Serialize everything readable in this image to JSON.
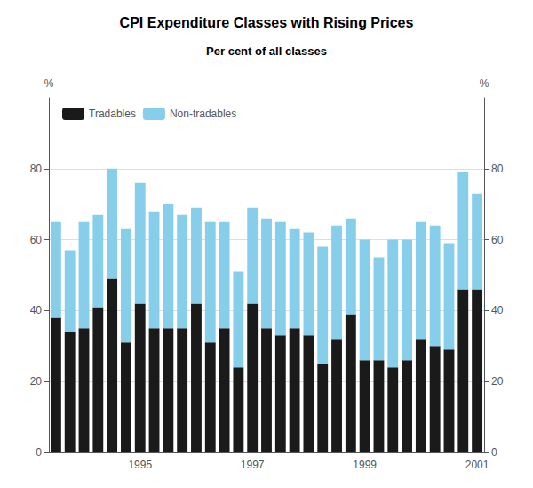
{
  "chart_data": {
    "type": "bar",
    "title": "CPI Expenditure Classes with Rising Prices",
    "subtitle": "Per cent of all classes",
    "ylabel": "%",
    "y2label": "%",
    "stacked": true,
    "grid": true,
    "legend": "upper left",
    "categories": [
      null,
      null,
      null,
      null,
      null,
      null,
      "1995",
      null,
      null,
      null,
      null,
      null,
      null,
      null,
      "1997",
      null,
      null,
      null,
      null,
      null,
      null,
      null,
      "1999",
      null,
      null,
      null,
      null,
      null,
      null,
      null,
      "2001"
    ],
    "series": [
      {
        "name": "Tradables",
        "color": "#1a1a1a",
        "values": [
          38,
          34,
          35,
          41,
          49,
          31,
          42,
          35,
          35,
          35,
          42,
          31,
          35,
          24,
          42,
          35,
          33,
          35,
          33,
          25,
          32,
          39,
          26,
          26,
          24,
          26,
          32,
          30,
          29,
          46,
          46
        ]
      },
      {
        "name": "Non-tradables",
        "color": "#87ceeb",
        "values": [
          27,
          23,
          30,
          26,
          31,
          32,
          34,
          33,
          35,
          32,
          27,
          34,
          30,
          27,
          27,
          31,
          32,
          28,
          29,
          33,
          32,
          27,
          34,
          29,
          36,
          34,
          33,
          34,
          30,
          33,
          27
        ]
      }
    ],
    "ylim": [
      0,
      100
    ],
    "yticks": [
      0,
      20,
      40,
      60,
      80
    ],
    "y2lim": [
      0,
      100
    ],
    "y2ticks": [
      0,
      20,
      40,
      60,
      80
    ]
  }
}
